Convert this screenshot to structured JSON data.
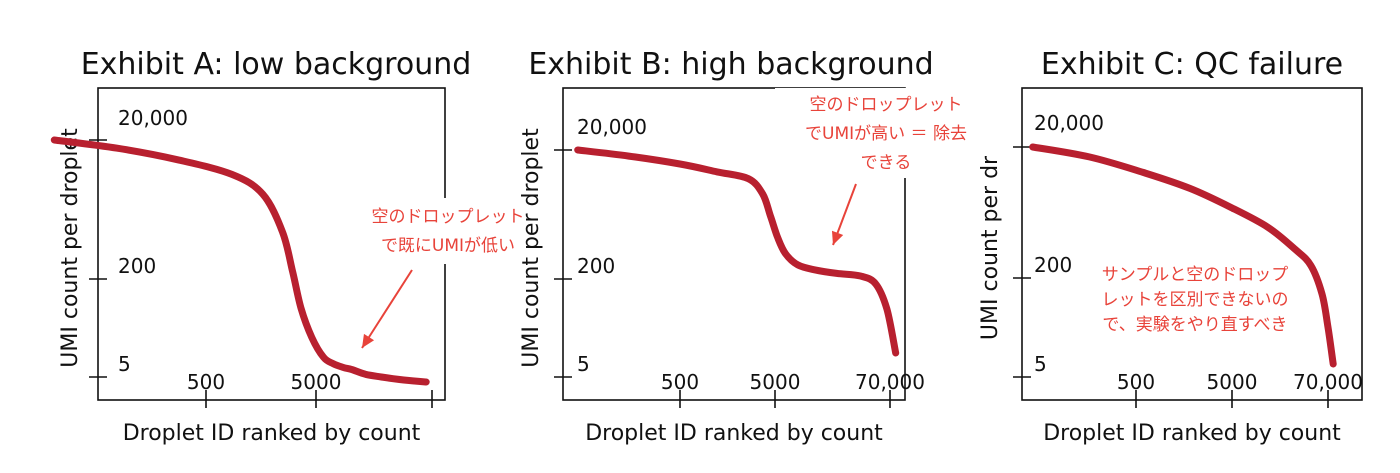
{
  "colors": {
    "curve": "#b8202f",
    "annotation": "#e8433a"
  },
  "chart_data": [
    {
      "type": "line",
      "title": "Exhibit A: low background",
      "xlabel": "Droplet ID ranked by count",
      "ylabel": "UMI count per droplet",
      "x_scale": "log",
      "y_scale": "log",
      "xlim": [
        30,
        30000
      ],
      "ylim": [
        3,
        80000
      ],
      "x_ticks": [
        500,
        5000,
        30000
      ],
      "x_tick_labels": [
        "500",
        "5000",
        ""
      ],
      "y_ticks": [
        5,
        200,
        20000
      ],
      "y_tick_labels": [
        "5",
        "200",
        "20,000"
      ],
      "series": [
        {
          "x": [
            32,
            100,
            300,
            800,
            1400,
            2000,
            2400,
            2800,
            3400,
            4200,
            5000,
            6000,
            7000,
            9000,
            12000,
            18000,
            27000
          ],
          "y": [
            20000,
            15000,
            10000,
            6000,
            3000,
            800,
            200,
            55,
            20,
            10,
            8,
            7,
            6.5,
            5.5,
            5,
            4.5,
            4.2
          ]
        }
      ],
      "annotations": [
        {
          "lines": [
            "空のドロップレット",
            "で既にUMIが低い"
          ]
        }
      ]
    },
    {
      "type": "line",
      "title": "Exhibit B: high background",
      "xlabel": "Droplet ID ranked by count",
      "ylabel": "UMI count per droplet",
      "x_scale": "log",
      "y_scale": "log",
      "xlim": [
        30,
        90000
      ],
      "ylim": [
        3,
        80000
      ],
      "x_ticks": [
        500,
        5000,
        70000
      ],
      "x_tick_labels": [
        "500",
        "5000",
        "70,000"
      ],
      "y_ticks": [
        5,
        200,
        20000
      ],
      "y_tick_labels": [
        "5",
        "200",
        "20,000"
      ],
      "series": [
        {
          "x": [
            45,
            150,
            500,
            1200,
            2500,
            3500,
            4200,
            5000,
            6000,
            8000,
            12000,
            20000,
            35000,
            50000,
            65000,
            80000
          ],
          "y": [
            20000,
            16000,
            12000,
            9000,
            7000,
            4000,
            1800,
            800,
            450,
            300,
            250,
            220,
            200,
            150,
            60,
            12
          ]
        }
      ],
      "annotations": [
        {
          "lines": [
            "空のドロップレット",
            "でUMIが高い ＝ 除去",
            "できる"
          ]
        }
      ]
    },
    {
      "type": "line",
      "title": "Exhibit C: QC failure",
      "xlabel": "Droplet ID ranked by count",
      "ylabel": "UMI count per dr",
      "x_scale": "log",
      "y_scale": "log",
      "xlim": [
        30,
        90000
      ],
      "ylim": [
        3,
        80000
      ],
      "x_ticks": [
        500,
        5000,
        70000
      ],
      "x_tick_labels": [
        "500",
        "5000",
        "70,000"
      ],
      "y_ticks": [
        5,
        200,
        20000
      ],
      "y_tick_labels": [
        "5",
        "200",
        "20,000"
      ],
      "series": [
        {
          "x": [
            35,
            150,
            600,
            2000,
            6000,
            15000,
            30000,
            45000,
            60000,
            70000,
            80000
          ],
          "y": [
            20000,
            14000,
            8000,
            4500,
            2200,
            1100,
            500,
            280,
            100,
            30,
            8
          ]
        }
      ],
      "annotations": [
        {
          "lines": [
            "サンプルと空のドロップ",
            "レットを区別できないの",
            "で、実験をやり直すべき"
          ]
        }
      ]
    }
  ]
}
